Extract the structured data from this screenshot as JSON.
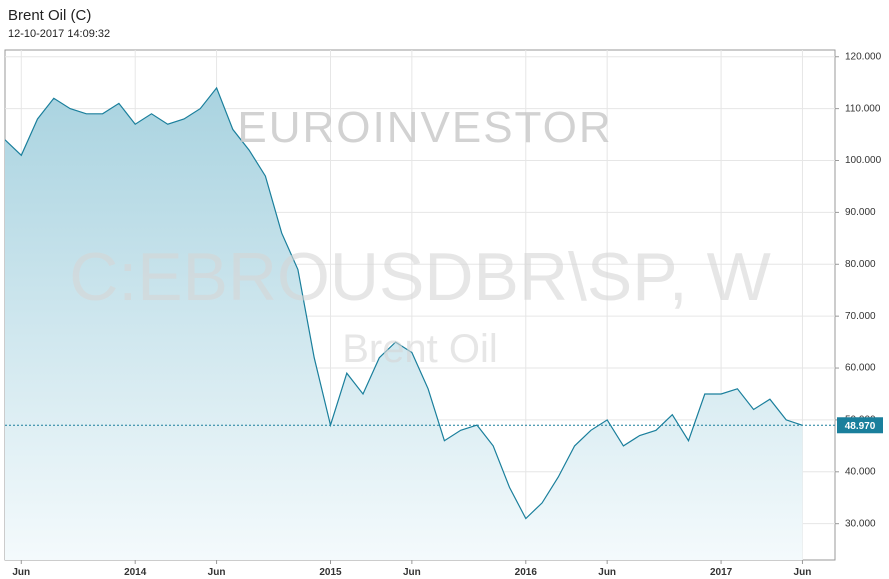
{
  "chart_data": {
    "type": "area",
    "title": "Brent Oil (C)",
    "subtitle": "12-10-2017 14:09:32",
    "watermarks": [
      "EUROINVESTOR",
      "C:EBROUSDBR\\SP, W",
      "Brent Oil"
    ],
    "x": [
      "2013-05",
      "2013-06",
      "2013-07",
      "2013-08",
      "2013-09",
      "2013-10",
      "2013-11",
      "2013-12",
      "2014-01",
      "2014-02",
      "2014-03",
      "2014-04",
      "2014-05",
      "2014-06",
      "2014-07",
      "2014-08",
      "2014-09",
      "2014-10",
      "2014-11",
      "2014-12",
      "2015-01",
      "2015-02",
      "2015-03",
      "2015-04",
      "2015-05",
      "2015-06",
      "2015-07",
      "2015-08",
      "2015-09",
      "2015-10",
      "2015-11",
      "2015-12",
      "2016-01",
      "2016-02",
      "2016-03",
      "2016-04",
      "2016-05",
      "2016-06",
      "2016-07",
      "2016-08",
      "2016-09",
      "2016-10",
      "2016-11",
      "2016-12",
      "2017-01",
      "2017-02",
      "2017-03",
      "2017-04",
      "2017-05",
      "2017-06"
    ],
    "series": [
      {
        "name": "Brent Oil",
        "color": "#1a7f9c",
        "values": [
          104,
          101,
          108,
          112,
          110,
          109,
          109,
          111,
          107,
          109,
          107,
          108,
          110,
          114,
          106,
          102,
          97,
          86,
          79,
          62,
          49,
          59,
          55,
          62,
          65,
          63,
          56,
          46,
          48,
          49,
          45,
          37,
          31,
          34,
          39,
          45,
          48,
          50,
          45,
          47,
          48,
          51,
          46,
          55,
          55,
          56,
          52,
          54,
          50,
          48.97
        ]
      }
    ],
    "last_label": {
      "value": 48.97,
      "label": "48.970"
    },
    "xlim": [
      "2013-05",
      "2017-08"
    ],
    "xticks": [
      {
        "value": "2013-06",
        "label": "Jun"
      },
      {
        "value": "2014-01",
        "label": "2014"
      },
      {
        "value": "2014-06",
        "label": "Jun"
      },
      {
        "value": "2015-01",
        "label": "2015"
      },
      {
        "value": "2015-06",
        "label": "Jun"
      },
      {
        "value": "2016-01",
        "label": "2016"
      },
      {
        "value": "2016-06",
        "label": "Jun"
      },
      {
        "value": "2017-01",
        "label": "2017"
      },
      {
        "value": "2017-06",
        "label": "Jun"
      }
    ],
    "ylim": [
      23,
      121.3
    ],
    "yticks": [
      {
        "value": 30,
        "label": "30.000"
      },
      {
        "value": 40,
        "label": "40.000"
      },
      {
        "value": 50,
        "label": "50.000"
      },
      {
        "value": 60,
        "label": "60.000"
      },
      {
        "value": 70,
        "label": "70.000"
      },
      {
        "value": 80,
        "label": "80.000"
      },
      {
        "value": 90,
        "label": "90.000"
      },
      {
        "value": 100,
        "label": "100.000"
      },
      {
        "value": 110,
        "label": "110.000"
      },
      {
        "value": 120,
        "label": "120.000"
      }
    ],
    "grid": true
  }
}
